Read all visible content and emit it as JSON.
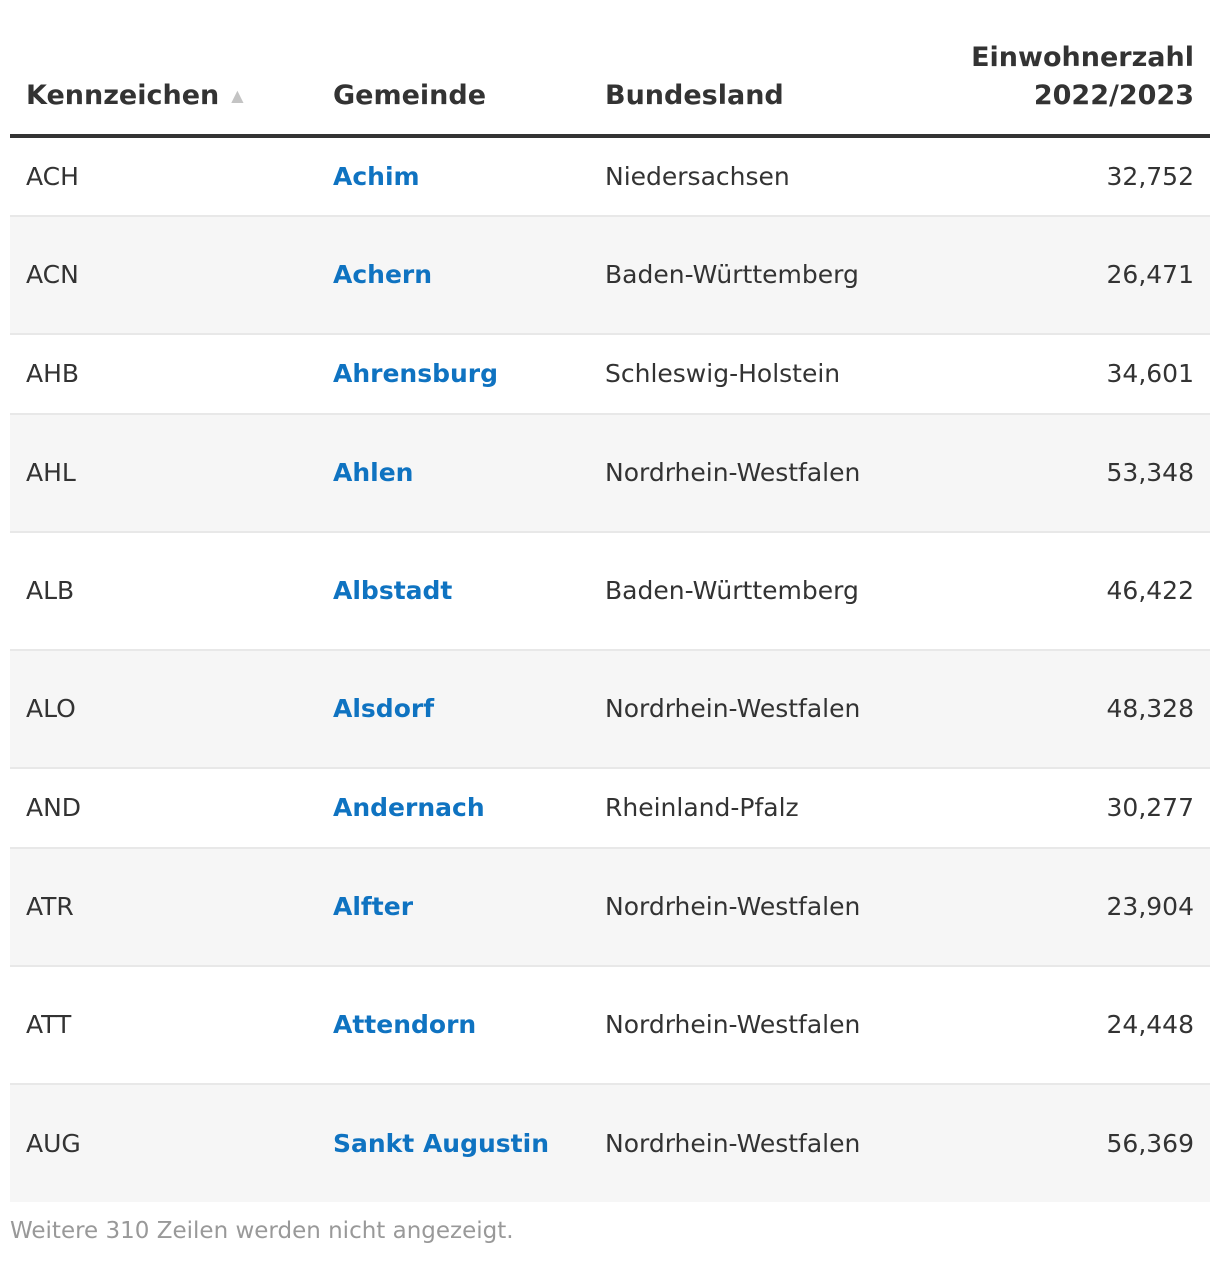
{
  "table": {
    "headers": {
      "kennzeichen": "Kennzeichen",
      "sort_indicator": "▲",
      "gemeinde": "Gemeinde",
      "bundesland": "Bundesland",
      "einwohner_line1": "Einwohnerzahl",
      "einwohner_line2": "2022/2023"
    },
    "rows": [
      {
        "kennzeichen": "ACH",
        "gemeinde": "Achim",
        "bundesland": "Niedersachsen",
        "einwohner": "32,752"
      },
      {
        "kennzeichen": "ACN",
        "gemeinde": "Achern",
        "bundesland": "Baden-Württemberg",
        "einwohner": "26,471"
      },
      {
        "kennzeichen": "AHB",
        "gemeinde": "Ahrensburg",
        "bundesland": "Schleswig-Holstein",
        "einwohner": "34,601"
      },
      {
        "kennzeichen": "AHL",
        "gemeinde": "Ahlen",
        "bundesland": "Nordrhein-Westfalen",
        "einwohner": "53,348"
      },
      {
        "kennzeichen": "ALB",
        "gemeinde": "Albstadt",
        "bundesland": "Baden-Württemberg",
        "einwohner": "46,422"
      },
      {
        "kennzeichen": "ALO",
        "gemeinde": "Alsdorf",
        "bundesland": "Nordrhein-Westfalen",
        "einwohner": "48,328"
      },
      {
        "kennzeichen": "AND",
        "gemeinde": "Andernach",
        "bundesland": "Rheinland-Pfalz",
        "einwohner": "30,277"
      },
      {
        "kennzeichen": "ATR",
        "gemeinde": "Alfter",
        "bundesland": "Nordrhein-Westfalen",
        "einwohner": "23,904"
      },
      {
        "kennzeichen": "ATT",
        "gemeinde": "Attendorn",
        "bundesland": "Nordrhein-Westfalen",
        "einwohner": "24,448"
      },
      {
        "kennzeichen": "AUG",
        "gemeinde": "Sankt Augustin",
        "bundesland": "Nordrhein-Westfalen",
        "einwohner": "56,369"
      }
    ]
  },
  "footer": {
    "note": "Weitere 310 Zeilen werden nicht angezeigt."
  },
  "colors": {
    "link": "#0f73c1",
    "text": "#333333",
    "stripe": "#f6f6f6",
    "muted": "#999999"
  }
}
